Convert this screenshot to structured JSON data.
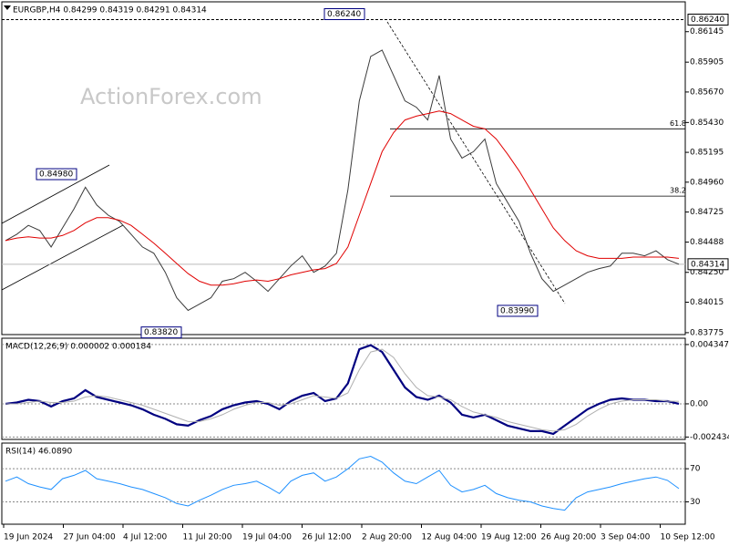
{
  "chart_data": [
    {
      "type": "line",
      "title": "EURGBP,H4  0.84299 0.84319 0.84291 0.84314",
      "watermark": "ActionForex.com",
      "ylim": [
        0.8376,
        0.8638
      ],
      "yticks": [
        {
          "value": 0.86145,
          "label": "0.86145"
        },
        {
          "value": 0.85905,
          "label": "0.85905"
        },
        {
          "value": 0.8567,
          "label": "0.85670"
        },
        {
          "value": 0.8543,
          "label": "0.85430"
        },
        {
          "value": 0.85195,
          "label": "0.85195"
        },
        {
          "value": 0.8496,
          "label": "0.84960"
        },
        {
          "value": 0.84725,
          "label": "0.84725"
        },
        {
          "value": 0.84488,
          "label": "0.84488"
        },
        {
          "value": 0.8425,
          "label": "0.84250"
        },
        {
          "value": 0.84015,
          "label": "0.84015"
        },
        {
          "value": 0.83775,
          "label": "0.83775"
        }
      ],
      "x_axis_labels": [
        "19 Jun 2024",
        "27 Jun 04:00",
        "4 Jul 12:00",
        "11 Jul 20:00",
        "19 Jul 04:00",
        "26 Jul 12:00",
        "2 Aug 20:00",
        "12 Aug 04:00",
        "19 Aug 12:00",
        "26 Aug 20:00",
        "3 Sep 04:00",
        "10 Sep 12:00"
      ],
      "series": [
        {
          "name": "Close",
          "color": "#3a3a3a",
          "values": [
            0.845,
            0.8455,
            0.8462,
            0.8458,
            0.8445,
            0.846,
            0.8475,
            0.8492,
            0.8478,
            0.847,
            0.8465,
            0.8455,
            0.8445,
            0.844,
            0.8425,
            0.8405,
            0.8395,
            0.84,
            0.8405,
            0.8418,
            0.842,
            0.8425,
            0.8418,
            0.841,
            0.842,
            0.843,
            0.8438,
            0.8425,
            0.843,
            0.844,
            0.849,
            0.856,
            0.8595,
            0.86,
            0.858,
            0.856,
            0.8555,
            0.8545,
            0.858,
            0.853,
            0.8515,
            0.852,
            0.853,
            0.8495,
            0.848,
            0.8465,
            0.844,
            0.842,
            0.841,
            0.8415,
            0.842,
            0.8425,
            0.8428,
            0.843,
            0.844,
            0.844,
            0.8438,
            0.8442,
            0.8435,
            0.84314
          ]
        },
        {
          "name": "MA",
          "color": "#e00000",
          "values": [
            0.845,
            0.8452,
            0.8453,
            0.8452,
            0.8452,
            0.8454,
            0.8458,
            0.8464,
            0.8468,
            0.8468,
            0.8466,
            0.8462,
            0.8455,
            0.8448,
            0.844,
            0.8432,
            0.8424,
            0.8418,
            0.8415,
            0.8415,
            0.8416,
            0.8418,
            0.8419,
            0.8418,
            0.842,
            0.8423,
            0.8425,
            0.8427,
            0.8428,
            0.8432,
            0.8445,
            0.847,
            0.8495,
            0.852,
            0.8535,
            0.8545,
            0.8548,
            0.855,
            0.8552,
            0.855,
            0.8545,
            0.854,
            0.8538,
            0.853,
            0.8518,
            0.8505,
            0.849,
            0.8475,
            0.846,
            0.845,
            0.8442,
            0.8438,
            0.8436,
            0.8436,
            0.8436,
            0.8437,
            0.8437,
            0.8437,
            0.8437,
            0.8436
          ]
        }
      ],
      "levels": [
        {
          "value": 0.8538,
          "label": "61.8"
        },
        {
          "value": 0.8485,
          "label": "38.2"
        }
      ],
      "annotations": [
        {
          "value": 0.8498,
          "label": "0.84980"
        },
        {
          "value": 0.8382,
          "label": "0.83820"
        },
        {
          "value": 0.8624,
          "label": "0.86240"
        },
        {
          "value": 0.8399,
          "label": "0.83990"
        }
      ],
      "markers": [
        {
          "value": 0.8624,
          "label": "0.86240"
        },
        {
          "value": 0.84314,
          "label": "0.84314"
        }
      ]
    },
    {
      "type": "line",
      "title": "MACD(12,26,9) 0.000002 0.000184",
      "ylim": [
        -0.00261,
        0.00481
      ],
      "yticks": [
        {
          "value": 0.004347,
          "label": "0.004347"
        },
        {
          "value": 0,
          "label": "0.00"
        },
        {
          "value": -0.002434,
          "label": "-0.002434"
        }
      ],
      "series": [
        {
          "name": "MACD",
          "color": "#000080",
          "values": [
            0,
            0.0001,
            0.0003,
            0.0002,
            -0.0002,
            0.0002,
            0.0004,
            0.001,
            0.0005,
            0.0003,
            0.0001,
            -0.0001,
            -0.0004,
            -0.0008,
            -0.0011,
            -0.0015,
            -0.0016,
            -0.0012,
            -0.0009,
            -0.0004,
            -0.0001,
            0.0001,
            0.0002,
            0,
            -0.0004,
            0.0002,
            0.0006,
            0.0008,
            0.0002,
            0.0004,
            0.0015,
            0.004,
            0.0043,
            0.0038,
            0.0025,
            0.0012,
            0.0005,
            0.0003,
            0.0006,
            0.0001,
            -0.0008,
            -0.001,
            -0.0008,
            -0.0012,
            -0.0016,
            -0.0018,
            -0.002,
            -0.002,
            -0.0022,
            -0.0016,
            -0.001,
            -0.0004,
            0,
            0.0003,
            0.0004,
            0.0003,
            0.0003,
            0.0002,
            0.0002,
            2e-06
          ]
        },
        {
          "name": "Signal",
          "color": "#b0b0b0",
          "values": [
            0,
            0,
            0.0001,
            0.0002,
            0.0001,
            0.0001,
            0.0002,
            0.0005,
            0.0006,
            0.0005,
            0.0003,
            0.0001,
            -0.0001,
            -0.0004,
            -0.0007,
            -0.001,
            -0.0013,
            -0.0013,
            -0.0011,
            -0.0008,
            -0.0004,
            -0.0001,
            0.0001,
            0.0001,
            -0.0001,
            0,
            0.0003,
            0.0006,
            0.0005,
            0.0004,
            0.0008,
            0.0025,
            0.0038,
            0.004,
            0.0034,
            0.0022,
            0.0012,
            0.0006,
            0.0005,
            0.0003,
            -0.0002,
            -0.0006,
            -0.0008,
            -0.001,
            -0.0013,
            -0.0015,
            -0.0017,
            -0.0019,
            -0.002,
            -0.0019,
            -0.0015,
            -0.0009,
            -0.0004,
            0,
            0.0002,
            0.0003,
            0.0003,
            0.0003,
            0.0002,
            0.000184
          ]
        }
      ]
    },
    {
      "type": "line",
      "title": "RSI(14) 46.0890",
      "ylim": [
        3,
        101
      ],
      "yticks": [
        70,
        30
      ],
      "series": [
        {
          "name": "RSI",
          "color": "#1e90ff",
          "values": [
            55,
            60,
            52,
            48,
            45,
            58,
            62,
            68,
            58,
            55,
            52,
            48,
            45,
            40,
            35,
            28,
            25,
            32,
            38,
            45,
            50,
            52,
            55,
            48,
            40,
            55,
            62,
            65,
            55,
            60,
            70,
            82,
            85,
            78,
            65,
            55,
            52,
            60,
            68,
            50,
            42,
            45,
            50,
            40,
            35,
            32,
            30,
            25,
            22,
            20,
            35,
            42,
            45,
            48,
            52,
            55,
            58,
            60,
            56,
            46.089
          ]
        }
      ]
    }
  ]
}
